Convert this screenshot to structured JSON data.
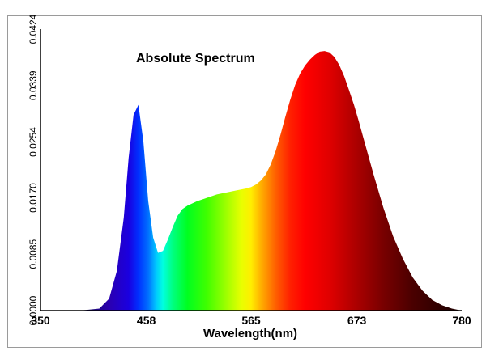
{
  "chart_data": {
    "type": "area",
    "title": "Absolute Spectrum",
    "xlabel": "Wavelength(nm)",
    "ylabel": "",
    "xlim": [
      350,
      780
    ],
    "ylim": [
      0,
      0.0424
    ],
    "x_ticks": [
      "350",
      "458",
      "565",
      "673",
      "780"
    ],
    "y_ticks": [
      "0.0000",
      "0.0085",
      "0.0170",
      "0.0254",
      "0.0339",
      "0.0424"
    ],
    "grid": false,
    "legend": "none",
    "fill": "wavelength-spectrum",
    "series": [
      {
        "x": [
          350,
          390,
          410,
          420,
          428,
          435,
          440,
          445,
          450,
          455,
          460,
          465,
          470,
          475,
          480,
          485,
          490,
          495,
          500,
          510,
          520,
          530,
          540,
          550,
          560,
          565,
          570,
          575,
          580,
          585,
          590,
          595,
          600,
          605,
          610,
          615,
          620,
          625,
          630,
          635,
          640,
          645,
          650,
          655,
          660,
          665,
          670,
          675,
          680,
          690,
          700,
          710,
          720,
          730,
          740,
          750,
          760,
          770,
          780
        ],
        "y": [
          0.0,
          0.0,
          0.0003,
          0.0018,
          0.006,
          0.014,
          0.023,
          0.0295,
          0.031,
          0.0255,
          0.0165,
          0.011,
          0.0087,
          0.009,
          0.0107,
          0.0126,
          0.0143,
          0.0153,
          0.0158,
          0.0165,
          0.017,
          0.0175,
          0.0178,
          0.0181,
          0.0184,
          0.0186,
          0.019,
          0.0196,
          0.0205,
          0.022,
          0.024,
          0.0265,
          0.0292,
          0.0318,
          0.034,
          0.0357,
          0.0369,
          0.0378,
          0.0385,
          0.039,
          0.0391,
          0.0389,
          0.0382,
          0.037,
          0.0353,
          0.0332,
          0.031,
          0.0285,
          0.0258,
          0.0205,
          0.0155,
          0.0112,
          0.0078,
          0.005,
          0.003,
          0.0016,
          0.0008,
          0.0003,
          0.0
        ]
      }
    ]
  },
  "colors": {
    "axis": "#000000",
    "frame_border": "#9a9a9a",
    "background": "#ffffff"
  }
}
